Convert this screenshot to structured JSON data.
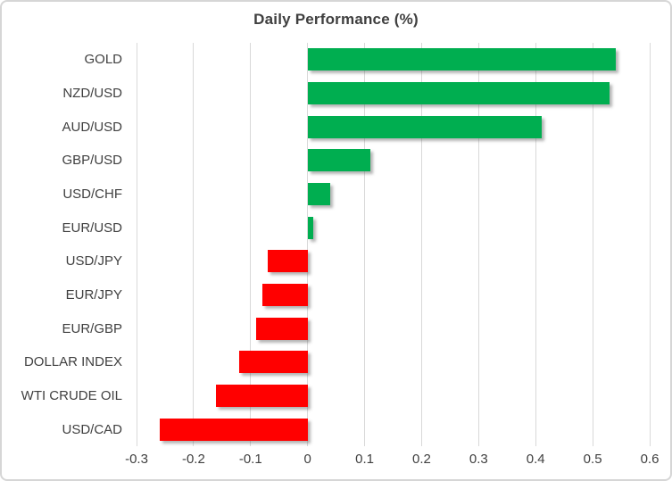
{
  "chart_data": {
    "type": "bar",
    "orientation": "horizontal",
    "title": "Daily Performance (%)",
    "categories": [
      "GOLD",
      "NZD/USD",
      "AUD/USD",
      "GBP/USD",
      "USD/CHF",
      "EUR/USD",
      "USD/JPY",
      "EUR/JPY",
      "EUR/GBP",
      "DOLLAR INDEX",
      "WTI CRUDE OIL",
      "USD/CAD"
    ],
    "values": [
      0.54,
      0.53,
      0.41,
      0.11,
      0.04,
      0.01,
      -0.07,
      -0.08,
      -0.09,
      -0.12,
      -0.16,
      -0.26
    ],
    "xlim": [
      -0.3,
      0.6
    ],
    "xticks": [
      -0.3,
      -0.2,
      -0.1,
      0,
      0.1,
      0.2,
      0.3,
      0.4,
      0.5,
      0.6
    ],
    "xtick_labels": [
      "-0.3",
      "-0.2",
      "-0.1",
      "0",
      "0.1",
      "0.2",
      "0.3",
      "0.4",
      "0.5",
      "0.6"
    ],
    "grid": true,
    "legend": "none",
    "colors": {
      "positive": "#00ae50",
      "negative": "#ff0000",
      "gridline": "#d9d9d9",
      "text": "#404040"
    }
  }
}
